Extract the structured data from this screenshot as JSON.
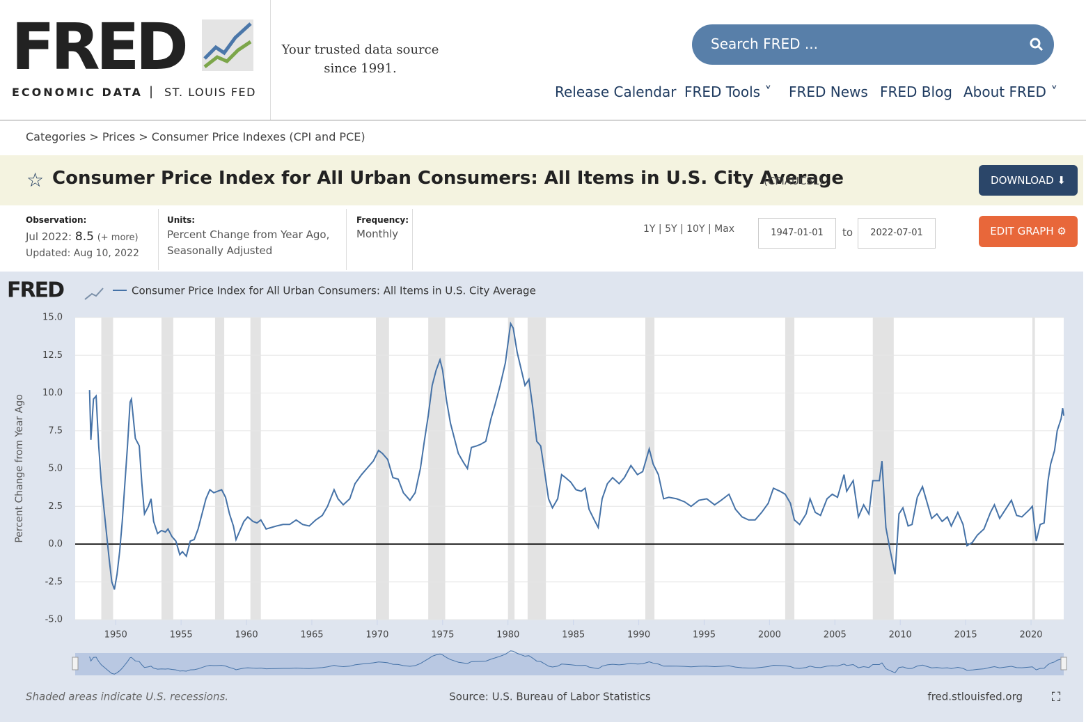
{
  "header": {
    "logo": "FRED",
    "subtitle_left": "ECONOMIC DATA",
    "subtitle_right": "ST. LOUIS FED",
    "tagline": [
      "Your trusted data source",
      "since 1991."
    ],
    "search_placeholder": "Search FRED ...",
    "nav": [
      "Release Calendar",
      "FRED Tools",
      "FRED News",
      "FRED Blog",
      "About FRED"
    ]
  },
  "breadcrumb": "Categories > Prices > Consumer Price Indexes (CPI and PCE)",
  "series_title": "Consumer Price Index for All Urban Consumers: All Items in U.S. City Average",
  "series_code": "(CPIAUCSL)",
  "download": "DOWNLOAD",
  "info": {
    "observation_label": "Observation:",
    "observation_date": "Jul 2022:",
    "observation_value": 8.5,
    "more": "(+ more)",
    "updated": "Updated: Aug 10, 2022",
    "units_label": "Units:",
    "units": [
      "Percent Change from Year Ago,",
      "Seasonally Adjusted"
    ],
    "frequency_label": "Frequency:",
    "frequency": "Monthly"
  },
  "controls": {
    "ranges": "1Y | 5Y | 10Y | Max",
    "start": "1947-01-01",
    "to": "to",
    "end": "2022-07-01",
    "edit": "EDIT GRAPH"
  },
  "chart_data": {
    "type": "line",
    "logo": "FRED",
    "series": [
      {
        "name": "Consumer Price Index for All Urban Consumers: All Items in U.S. City Average",
        "color": "#4572a7",
        "x": [
          1948.0,
          1948.1,
          1948.3,
          1948.5,
          1948.7,
          1948.9,
          1949.2,
          1949.5,
          1949.7,
          1949.9,
          1950.1,
          1950.3,
          1950.5,
          1950.7,
          1950.9,
          1951.1,
          1951.2,
          1951.5,
          1951.8,
          1952.0,
          1952.2,
          1952.5,
          1952.7,
          1952.9,
          1953.2,
          1953.5,
          1953.8,
          1954.0,
          1954.3,
          1954.6,
          1954.9,
          1955.1,
          1955.4,
          1955.7,
          1956.0,
          1956.3,
          1956.6,
          1956.9,
          1957.2,
          1957.5,
          1957.8,
          1958.1,
          1958.4,
          1958.7,
          1959.0,
          1959.2,
          1959.5,
          1959.8,
          1960.1,
          1960.5,
          1960.8,
          1961.1,
          1961.5,
          1961.9,
          1962.3,
          1962.8,
          1963.3,
          1963.8,
          1964.3,
          1964.8,
          1965.3,
          1965.8,
          1966.2,
          1966.7,
          1967.0,
          1967.4,
          1967.9,
          1968.3,
          1968.8,
          1969.2,
          1969.7,
          1970.1,
          1970.4,
          1970.8,
          1971.2,
          1971.6,
          1972.0,
          1972.5,
          1972.9,
          1973.3,
          1973.6,
          1973.9,
          1974.2,
          1974.5,
          1974.8,
          1975.0,
          1975.3,
          1975.6,
          1975.9,
          1976.2,
          1976.6,
          1976.9,
          1977.2,
          1977.6,
          1977.9,
          1978.3,
          1978.7,
          1979.0,
          1979.4,
          1979.8,
          1980.2,
          1980.4,
          1980.7,
          1981.0,
          1981.3,
          1981.6,
          1981.9,
          1982.2,
          1982.5,
          1982.8,
          1983.1,
          1983.4,
          1983.8,
          1984.1,
          1984.4,
          1984.8,
          1985.2,
          1985.6,
          1985.9,
          1986.2,
          1986.6,
          1986.9,
          1987.2,
          1987.6,
          1988.0,
          1988.5,
          1988.9,
          1989.4,
          1989.9,
          1990.3,
          1990.8,
          1991.1,
          1991.5,
          1991.9,
          1992.3,
          1992.9,
          1993.5,
          1994.0,
          1994.6,
          1995.2,
          1995.8,
          1996.3,
          1996.9,
          1997.4,
          1997.9,
          1998.4,
          1998.9,
          1999.4,
          1999.9,
          2000.3,
          2000.8,
          2001.2,
          2001.6,
          2001.9,
          2002.3,
          2002.8,
          2003.1,
          2003.5,
          2003.9,
          2004.4,
          2004.8,
          2005.2,
          2005.7,
          2005.9,
          2006.4,
          2006.8,
          2007.2,
          2007.6,
          2007.9,
          2008.4,
          2008.6,
          2008.9,
          2009.2,
          2009.6,
          2009.9,
          2010.2,
          2010.6,
          2010.9,
          2011.3,
          2011.7,
          2012.0,
          2012.4,
          2012.8,
          2013.2,
          2013.6,
          2013.9,
          2014.4,
          2014.8,
          2015.1,
          2015.5,
          2015.9,
          2016.4,
          2016.9,
          2017.2,
          2017.6,
          2017.9,
          2018.5,
          2018.9,
          2019.3,
          2019.9,
          2020.1,
          2020.4,
          2020.7,
          2021.0,
          2021.3,
          2021.5,
          2021.8,
          2022.0,
          2022.3,
          2022.42,
          2022.5
        ],
        "values": [
          10.2,
          6.9,
          9.6,
          9.8,
          6.5,
          4.0,
          1.5,
          -1.0,
          -2.5,
          -3.0,
          -2.0,
          -0.5,
          1.5,
          4.0,
          6.5,
          9.4,
          9.6,
          7.0,
          6.5,
          4.0,
          2.0,
          2.5,
          3.0,
          1.5,
          0.7,
          0.9,
          0.8,
          1.0,
          0.5,
          0.2,
          -0.7,
          -0.5,
          -0.8,
          0.2,
          0.3,
          1.0,
          2.0,
          3.0,
          3.6,
          3.4,
          3.5,
          3.6,
          3.1,
          2.0,
          1.2,
          0.3,
          0.9,
          1.5,
          1.8,
          1.5,
          1.4,
          1.6,
          1.0,
          1.1,
          1.2,
          1.3,
          1.3,
          1.6,
          1.3,
          1.2,
          1.6,
          1.9,
          2.5,
          3.6,
          3.0,
          2.6,
          3.0,
          4.0,
          4.6,
          5.0,
          5.5,
          6.2,
          6.0,
          5.6,
          4.4,
          4.3,
          3.4,
          2.9,
          3.4,
          5.0,
          6.8,
          8.5,
          10.5,
          11.5,
          12.2,
          11.5,
          9.5,
          8.0,
          7.0,
          6.0,
          5.4,
          5.0,
          6.4,
          6.5,
          6.6,
          6.8,
          8.3,
          9.2,
          10.5,
          12.0,
          14.6,
          14.3,
          12.7,
          11.6,
          10.5,
          10.9,
          9.0,
          6.8,
          6.5,
          4.8,
          3.0,
          2.4,
          3.0,
          4.6,
          4.4,
          4.1,
          3.6,
          3.5,
          3.7,
          2.3,
          1.6,
          1.1,
          3.0,
          4.0,
          4.4,
          4.0,
          4.4,
          5.2,
          4.6,
          4.8,
          6.3,
          5.3,
          4.6,
          3.0,
          3.1,
          3.0,
          2.8,
          2.5,
          2.9,
          3.0,
          2.6,
          2.9,
          3.3,
          2.3,
          1.8,
          1.6,
          1.6,
          2.1,
          2.7,
          3.7,
          3.5,
          3.3,
          2.7,
          1.6,
          1.3,
          2.0,
          3.0,
          2.1,
          1.9,
          3.0,
          3.3,
          3.1,
          4.6,
          3.5,
          4.2,
          1.8,
          2.6,
          2.0,
          4.2,
          4.2,
          5.5,
          1.1,
          -0.3,
          -2.0,
          2.0,
          2.4,
          1.2,
          1.3,
          3.1,
          3.8,
          2.9,
          1.7,
          2.0,
          1.5,
          1.8,
          1.2,
          2.1,
          1.3,
          -0.1,
          0.1,
          0.6,
          1.0,
          2.1,
          2.6,
          1.7,
          2.1,
          2.9,
          1.9,
          1.8,
          2.3,
          2.5,
          0.2,
          1.3,
          1.4,
          4.2,
          5.3,
          6.2,
          7.5,
          8.3,
          9.0,
          8.5
        ]
      }
    ],
    "recessions": [
      [
        1948.9,
        1949.8
      ],
      [
        1953.5,
        1954.4
      ],
      [
        1957.6,
        1958.3
      ],
      [
        1960.3,
        1961.1
      ],
      [
        1969.9,
        1970.9
      ],
      [
        1973.9,
        1975.2
      ],
      [
        1980.0,
        1980.5
      ],
      [
        1981.5,
        1982.9
      ],
      [
        1990.5,
        1991.2
      ],
      [
        2001.2,
        2001.9
      ],
      [
        2007.9,
        2009.5
      ],
      [
        2020.1,
        2020.3
      ]
    ],
    "ylabel": "Percent Change from Year Ago",
    "xlim": [
      1946.9,
      2022.5
    ],
    "ylim": [
      -5,
      15
    ],
    "xticks": [
      1950,
      1955,
      1960,
      1965,
      1970,
      1975,
      1980,
      1985,
      1990,
      1995,
      2000,
      2005,
      2010,
      2015,
      2020
    ],
    "yticks": [
      {
        "value": -5,
        "label": "-5.0"
      },
      -2.5,
      {
        "value": 0,
        "label": "0.0"
      },
      2.5,
      {
        "value": 5,
        "label": "5.0"
      },
      7.5,
      {
        "value": 10,
        "label": "10.0"
      },
      12.5,
      {
        "value": 15,
        "label": "15.0"
      }
    ],
    "grid": true,
    "recession_color": "#e3e3e3",
    "note": "Shaded areas indicate U.S. recessions.",
    "source": "Source: U.S. Bureau of Labor Statistics",
    "site": "fred.stlouisfed.org"
  }
}
